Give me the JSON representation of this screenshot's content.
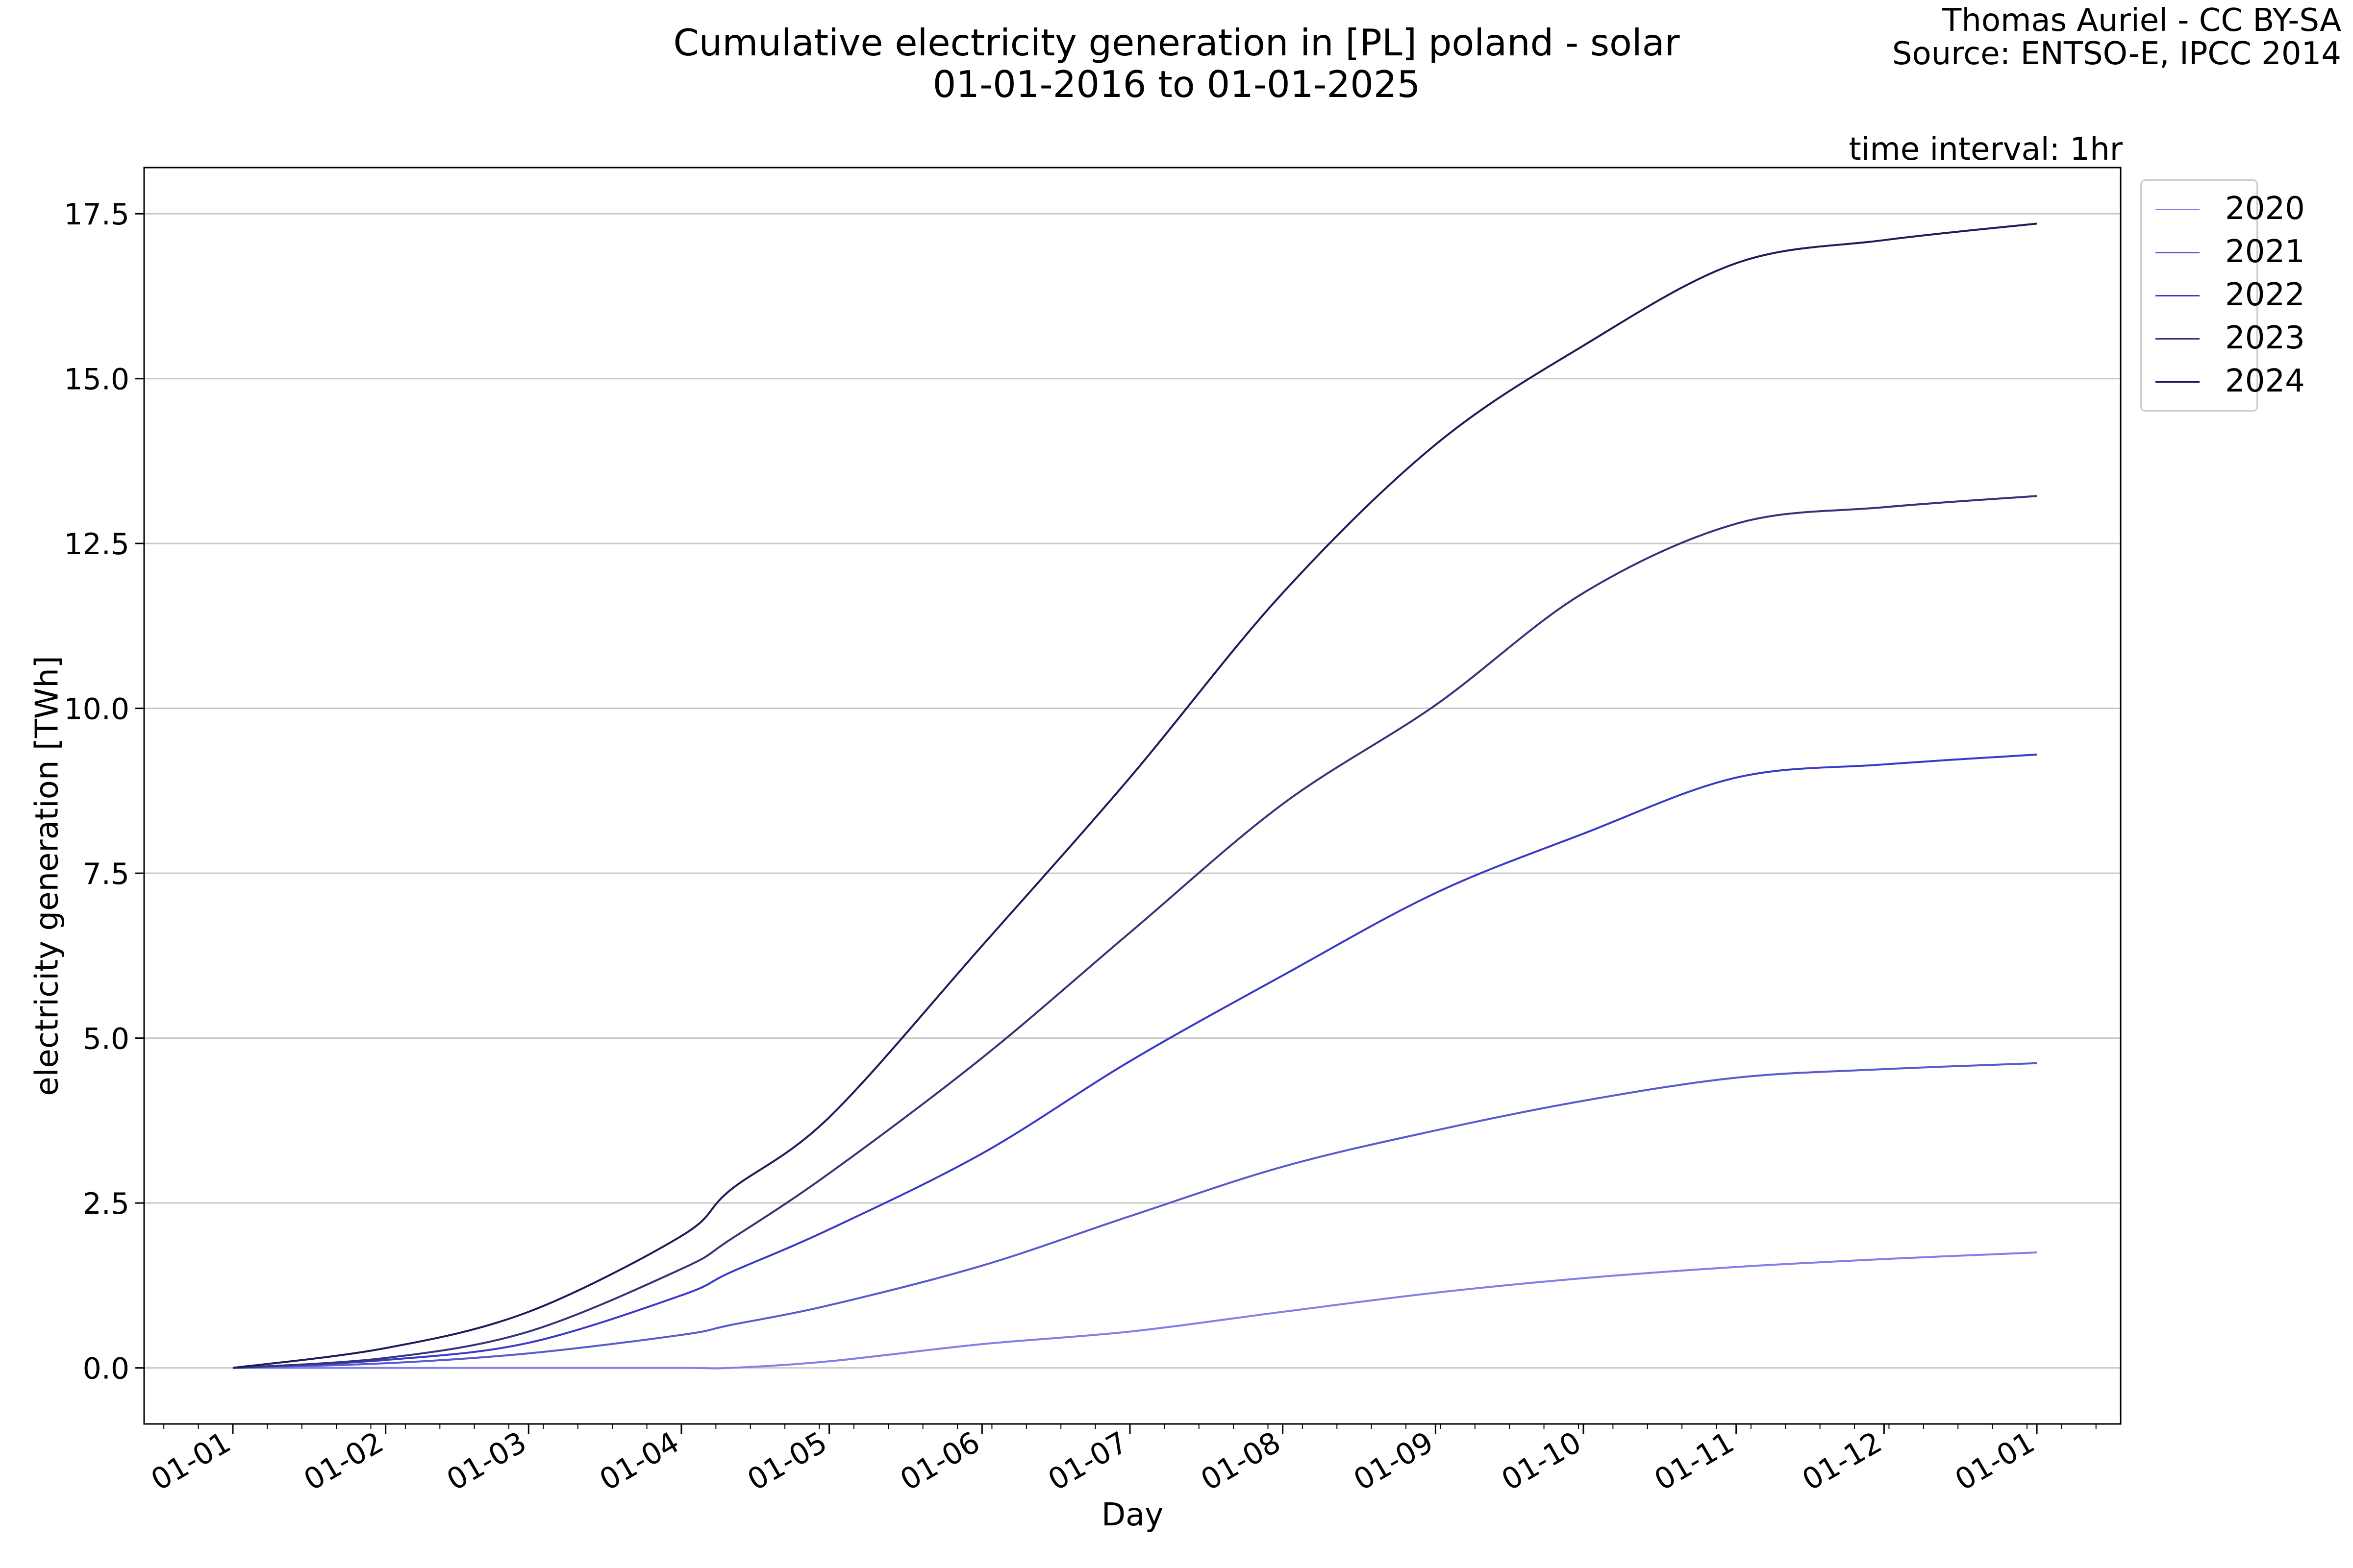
{
  "header": {
    "title_line1": "Cumulative electricity generation in [PL] poland - solar",
    "title_line2": "01-01-2016 to 01-01-2025",
    "credit_line1": "Thomas Auriel - CC BY-SA",
    "credit_line2": "Source: ENTSO-E, IPCC 2014",
    "interval_note": "time interval: 1hr"
  },
  "chart_data": {
    "type": "line",
    "title": "Cumulative electricity generation in [PL] poland - solar",
    "subtitle": "01-01-2016 to 01-01-2025",
    "xlabel": "Day",
    "ylabel": "electricity generation [TWh]",
    "xlim": [
      -18,
      383
    ],
    "ylim": [
      -0.85,
      18.2
    ],
    "grid": "horizontal",
    "legend_position": "outside-right-top",
    "x_ticks": [
      {
        "label": "01-01",
        "day": 0
      },
      {
        "label": "01-02",
        "day": 31
      },
      {
        "label": "01-03",
        "day": 60
      },
      {
        "label": "01-04",
        "day": 91
      },
      {
        "label": "01-05",
        "day": 121
      },
      {
        "label": "01-06",
        "day": 152
      },
      {
        "label": "01-07",
        "day": 182
      },
      {
        "label": "01-08",
        "day": 213
      },
      {
        "label": "01-09",
        "day": 244
      },
      {
        "label": "01-10",
        "day": 274
      },
      {
        "label": "01-11",
        "day": 305
      },
      {
        "label": "01-12",
        "day": 335
      },
      {
        "label": "01-01",
        "day": 366
      }
    ],
    "y_ticks": [
      {
        "label": "0.0",
        "value": 0
      },
      {
        "label": "2.5",
        "value": 2.5
      },
      {
        "label": "5.0",
        "value": 5
      },
      {
        "label": "7.5",
        "value": 7.5
      },
      {
        "label": "10.0",
        "value": 10
      },
      {
        "label": "12.5",
        "value": 12.5
      },
      {
        "label": "15.0",
        "value": 15
      },
      {
        "label": "17.5",
        "value": 17.5
      }
    ],
    "x": [
      0,
      31,
      60,
      91,
      101,
      121,
      152,
      182,
      213,
      244,
      274,
      305,
      335,
      366
    ],
    "series": [
      {
        "name": "2020",
        "color": "#8080e8",
        "values": [
          0,
          0,
          0,
          0,
          0,
          0.1,
          0.36,
          0.55,
          0.85,
          1.14,
          1.36,
          1.53,
          1.65,
          1.75
        ]
      },
      {
        "name": "2021",
        "color": "#5a5ad0",
        "values": [
          0,
          0.07,
          0.22,
          0.5,
          0.65,
          0.95,
          1.55,
          2.3,
          3.05,
          3.6,
          4.05,
          4.4,
          4.53,
          4.62
        ]
      },
      {
        "name": "2022",
        "color": "#3a3ac8",
        "values": [
          0,
          0.12,
          0.38,
          1.1,
          1.45,
          2.1,
          3.25,
          4.65,
          5.95,
          7.2,
          8.1,
          8.95,
          9.15,
          9.3
        ]
      },
      {
        "name": "2023",
        "color": "#34347a",
        "values": [
          0,
          0.15,
          0.55,
          1.5,
          1.95,
          2.95,
          4.7,
          6.6,
          8.55,
          10.05,
          11.75,
          12.8,
          13.05,
          13.22
        ]
      },
      {
        "name": "2024",
        "color": "#1c1c5a",
        "values": [
          0,
          0.3,
          0.85,
          2.0,
          2.7,
          3.8,
          6.4,
          8.95,
          11.75,
          14.0,
          15.5,
          16.75,
          17.1,
          17.35
        ]
      }
    ]
  }
}
